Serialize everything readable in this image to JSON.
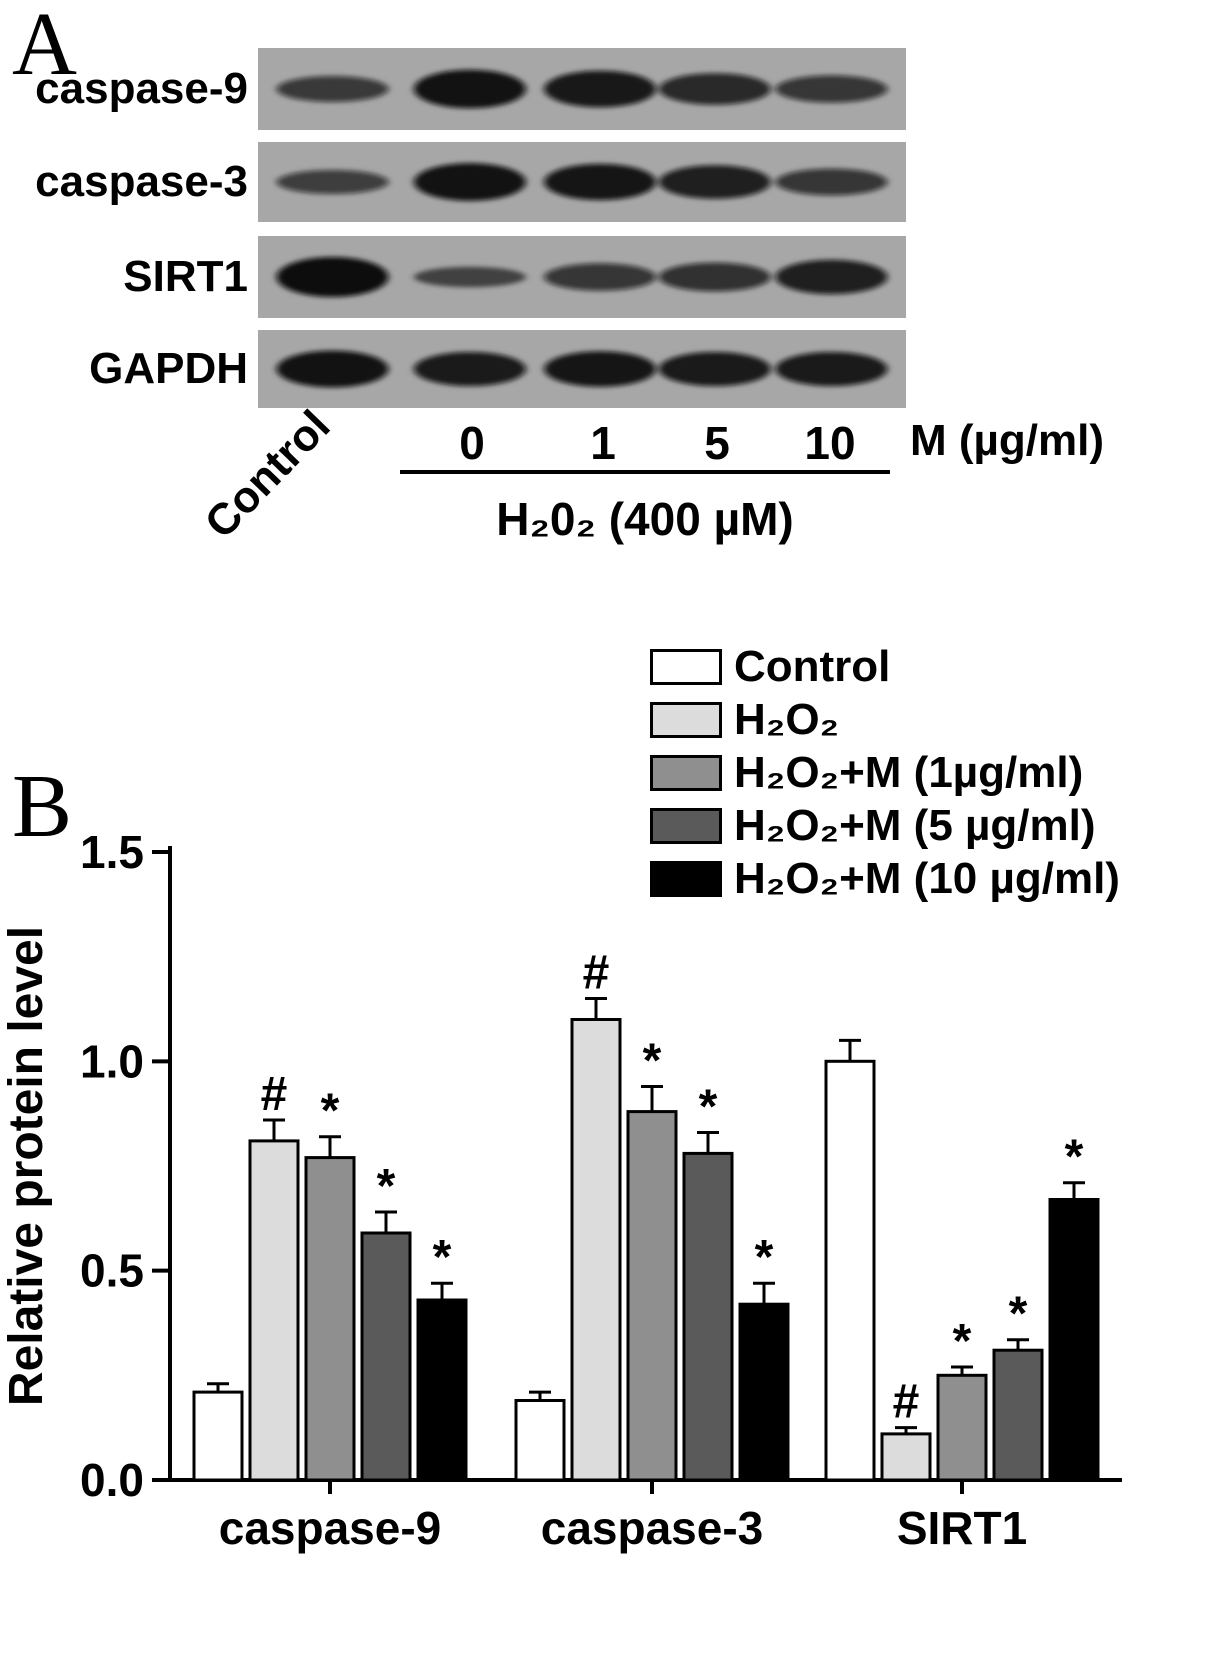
{
  "panel_a": {
    "label": "A",
    "blots": [
      {
        "name": "caspase-9",
        "bands": [
          0.5,
          0.95,
          0.88,
          0.7,
          0.55
        ]
      },
      {
        "name": "caspase-3",
        "bands": [
          0.45,
          0.95,
          0.9,
          0.8,
          0.55
        ]
      },
      {
        "name": "SIRT1",
        "bands": [
          1.0,
          0.3,
          0.55,
          0.6,
          0.8
        ]
      },
      {
        "name": "GAPDH",
        "bands": [
          0.95,
          0.85,
          0.9,
          0.85,
          0.85
        ]
      }
    ],
    "lanes": {
      "control": "Control",
      "doses": [
        "0",
        "1",
        "5",
        "10"
      ],
      "unit": "M (µg/ml)",
      "treatment": "H₂0₂ (400 µM)"
    }
  },
  "panel_b": {
    "label": "B"
  },
  "chart_data": {
    "type": "bar",
    "title": "",
    "xlabel": "",
    "ylabel": "Relative protein level",
    "ylim": [
      0,
      1.5
    ],
    "yticks": [
      0,
      0.5,
      1,
      1.5
    ],
    "grid": false,
    "legend_position": "top-right",
    "categories": [
      "caspase-9",
      "caspase-3",
      "SIRT1"
    ],
    "series": [
      {
        "name": "Control",
        "color": "#ffffff",
        "values": [
          0.21,
          0.19,
          1.0
        ],
        "errors": [
          0.02,
          0.02,
          0.05
        ],
        "sig": [
          "",
          "",
          ""
        ]
      },
      {
        "name": "H₂O₂",
        "color": "#dcdcdc",
        "values": [
          0.81,
          1.1,
          0.11
        ],
        "errors": [
          0.05,
          0.05,
          0.015
        ],
        "sig": [
          "#",
          "#",
          "#"
        ]
      },
      {
        "name": "H₂O₂+M (1µg/ml)",
        "color": "#8f8f8f",
        "values": [
          0.77,
          0.88,
          0.25
        ],
        "errors": [
          0.05,
          0.06,
          0.02
        ],
        "sig": [
          "*",
          "*",
          "*"
        ]
      },
      {
        "name": "H₂O₂+M (5 µg/ml)",
        "color": "#5a5a5a",
        "values": [
          0.59,
          0.78,
          0.31
        ],
        "errors": [
          0.05,
          0.05,
          0.025
        ],
        "sig": [
          "*",
          "*",
          "*"
        ]
      },
      {
        "name": "H₂O₂+M (10 µg/ml)",
        "color": "#000000",
        "values": [
          0.43,
          0.42,
          0.67
        ],
        "errors": [
          0.04,
          0.05,
          0.04
        ],
        "sig": [
          "*",
          "*",
          "*"
        ]
      }
    ]
  }
}
